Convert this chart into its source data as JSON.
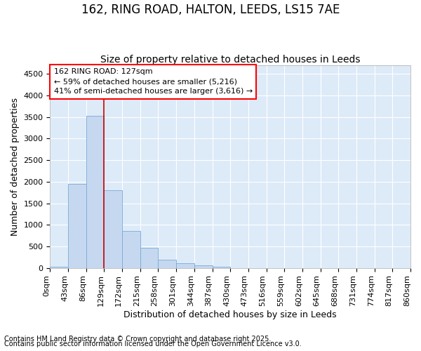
{
  "title": "162, RING ROAD, HALTON, LEEDS, LS15 7AE",
  "subtitle": "Size of property relative to detached houses in Leeds",
  "xlabel": "Distribution of detached houses by size in Leeds",
  "ylabel": "Number of detached properties",
  "bar_color": "#c5d8f0",
  "bar_edge_color": "#7aaad4",
  "bar_values": [
    30,
    1950,
    3530,
    1810,
    860,
    460,
    185,
    100,
    55,
    25,
    0,
    0,
    0,
    0,
    0,
    0,
    0,
    0,
    0,
    0
  ],
  "bin_labels": [
    "0sqm",
    "43sqm",
    "86sqm",
    "129sqm",
    "172sqm",
    "215sqm",
    "258sqm",
    "301sqm",
    "344sqm",
    "387sqm",
    "430sqm",
    "473sqm",
    "516sqm",
    "559sqm",
    "602sqm",
    "645sqm",
    "688sqm",
    "731sqm",
    "774sqm",
    "817sqm",
    "860sqm"
  ],
  "ylim": [
    0,
    4700
  ],
  "yticks": [
    0,
    500,
    1000,
    1500,
    2000,
    2500,
    3000,
    3500,
    4000,
    4500
  ],
  "property_label": "162 RING ROAD: 127sqm",
  "annotation_line1": "← 59% of detached houses are smaller (5,216)",
  "annotation_line2": "41% of semi-detached houses are larger (3,616) →",
  "vline_position": 3.0,
  "footnote1": "Contains HM Land Registry data © Crown copyright and database right 2025.",
  "footnote2": "Contains public sector information licensed under the Open Government Licence v3.0.",
  "plot_bg_color": "#ddeaf8",
  "fig_bg_color": "#ffffff",
  "grid_color": "#ffffff",
  "title_fontsize": 12,
  "subtitle_fontsize": 10,
  "axis_label_fontsize": 9,
  "tick_fontsize": 8,
  "annotation_fontsize": 8,
  "footnote_fontsize": 7
}
